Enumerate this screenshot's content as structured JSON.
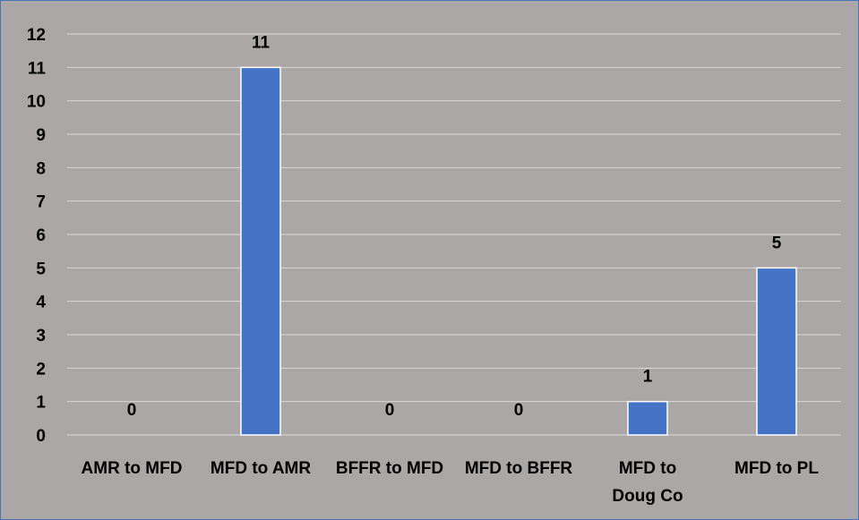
{
  "chart_data": {
    "type": "bar",
    "categories": [
      "AMR to MFD",
      "MFD to AMR",
      "BFFR to MFD",
      "MFD to BFFR",
      "MFD to Doug Co",
      "MFD to PL"
    ],
    "category_label_lines": [
      [
        "AMR to MFD"
      ],
      [
        "MFD to AMR"
      ],
      [
        "BFFR to MFD"
      ],
      [
        "MFD to BFFR"
      ],
      [
        "MFD to",
        "Doug Co"
      ],
      [
        "MFD to PL"
      ]
    ],
    "values": [
      0,
      11,
      0,
      0,
      1,
      5
    ],
    "data_labels": [
      "0",
      "11",
      "0",
      "0",
      "1",
      "5"
    ],
    "yticks": [
      "0",
      "1",
      "2",
      "3",
      "4",
      "5",
      "6",
      "7",
      "8",
      "9",
      "10",
      "11",
      "12"
    ],
    "ylim": [
      0,
      12
    ],
    "grid": true,
    "legend": "none",
    "colors": {
      "bar": "#4472c4",
      "bar_border": "#ffffff",
      "background": "#aba7a6",
      "gridline": "#d9d9d9",
      "frame": "#4a73b5"
    }
  }
}
